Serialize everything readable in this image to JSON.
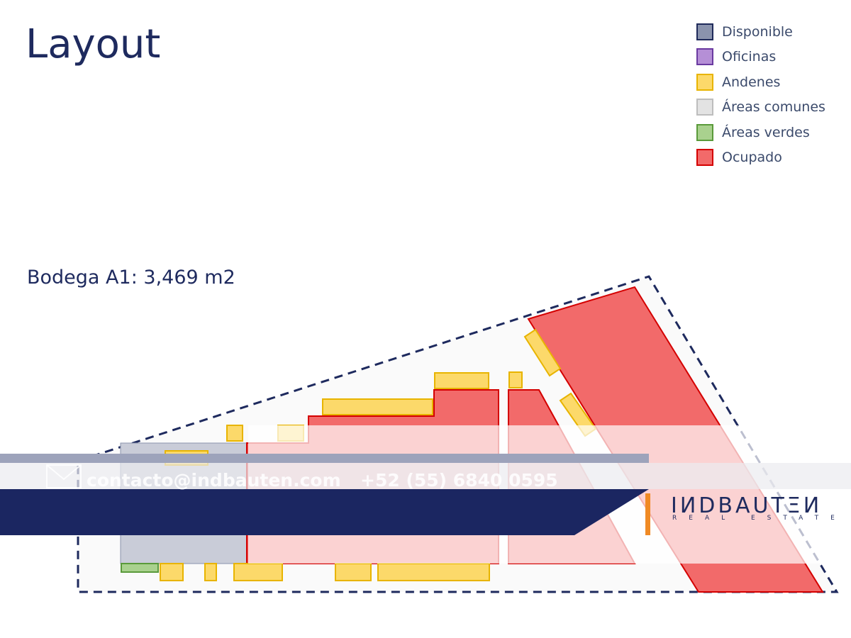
{
  "header": {
    "title": "Layout"
  },
  "legend": [
    {
      "label": "Disponible",
      "color": "#8a93ad",
      "border": "#1f2a5a"
    },
    {
      "label": "Oficinas",
      "color": "#b58fd6",
      "border": "#6a3aa0"
    },
    {
      "label": "Andenes",
      "color": "#fcd96a",
      "border": "#e8b400"
    },
    {
      "label": "Áreas comunes",
      "color": "#e3e3e3",
      "border": "#bdbdbd"
    },
    {
      "label": "Áreas verdes",
      "color": "#a9d18e",
      "border": "#5a9a3a"
    },
    {
      "label": "Ocupado",
      "color": "#f26a6a",
      "border": "#d40000"
    }
  ],
  "plan": {
    "label": "Bodega A1: 3,469 m2"
  },
  "footer": {
    "email": "contacto@indbauten.com",
    "phone": "+52 (55) 6840 0595",
    "logo": "IИDBAUTΞИ",
    "tagline": "REAL ESTATE"
  }
}
